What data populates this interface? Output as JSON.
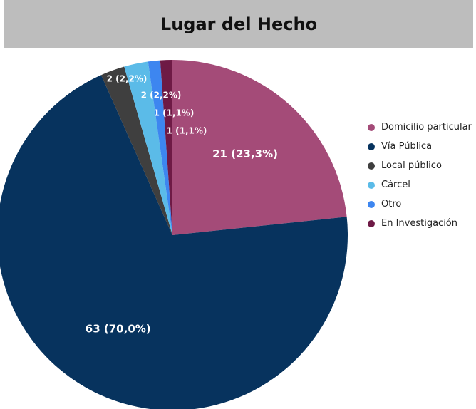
{
  "chart_data": {
    "type": "pie",
    "title": "Lugar del Hecho",
    "categories": [
      "Domicilio particular",
      "Vía Pública",
      "Local público",
      "Cárcel",
      "Otro",
      "En Investigación"
    ],
    "values": [
      21,
      63,
      2,
      2,
      1,
      1
    ],
    "value_labels": [
      "21 (23,3%)",
      "63 (70,0%)",
      "2 (2,2%)",
      "2 (2,2%)",
      "1 (1,1%)",
      "1 (1,1%)"
    ],
    "colors": [
      "#a44b78",
      "#07335e",
      "#3f3f3f",
      "#5bbbe8",
      "#3d86f0",
      "#6e1a45"
    ],
    "legend": "right"
  }
}
